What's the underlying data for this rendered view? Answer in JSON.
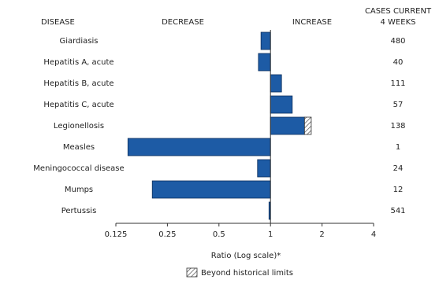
{
  "chart_data": {
    "type": "bar",
    "orientation": "horizontal",
    "headers": {
      "disease": "DISEASE",
      "decrease": "DECREASE",
      "increase": "INCREASE",
      "cases": [
        "CASES CURRENT",
        "4 WEEKS"
      ]
    },
    "categories": [
      "Giardiasis",
      "Hepatitis A, acute",
      "Hepatitis B, acute",
      "Hepatitis C, acute",
      "Legionellosis",
      "Measles",
      "Meningococcal disease",
      "Mumps",
      "Pertussis"
    ],
    "values": [
      0.88,
      0.85,
      1.16,
      1.34,
      1.73,
      0.147,
      0.84,
      0.204,
      0.98
    ],
    "historical_limit": [
      null,
      null,
      null,
      null,
      1.58,
      null,
      null,
      null,
      null
    ],
    "cases": [
      480,
      40,
      111,
      57,
      138,
      1,
      24,
      12,
      541
    ],
    "color": "#1d5ba5",
    "xlim": [
      0.125,
      4
    ],
    "xticks": [
      0.125,
      0.25,
      0.5,
      1,
      2,
      4
    ],
    "log_scale": true,
    "xlabel": "Ratio (Log scale)*",
    "legend": {
      "label": "Beyond historical limits",
      "position": "bottom"
    }
  }
}
